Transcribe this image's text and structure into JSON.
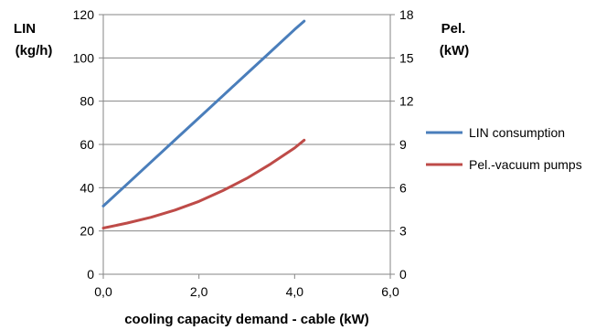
{
  "chart_data": {
    "type": "line",
    "xlabel": "cooling capacity demand - cable (kW)",
    "ylabel_left": [
      "LIN",
      "(kg/h)"
    ],
    "ylabel_right": [
      "Pel.",
      "(kW)"
    ],
    "x_ticks": [
      "0,0",
      "2,0",
      "4,0",
      "6,0"
    ],
    "y_left_ticks": [
      "0",
      "20",
      "40",
      "60",
      "80",
      "100",
      "120"
    ],
    "y_right_ticks": [
      "0",
      "3",
      "6",
      "9",
      "12",
      "15",
      "18"
    ],
    "xlim": [
      0,
      6
    ],
    "ylim_left": [
      0,
      120
    ],
    "ylim_right": [
      0,
      18
    ],
    "grid": "horizontal",
    "legend_position": "right",
    "series": [
      {
        "name": "LIN consumption",
        "axis": "left",
        "color": "#4a7ebb",
        "x": [
          0.0,
          0.5,
          1.0,
          1.5,
          2.0,
          2.5,
          3.0,
          3.5,
          4.0,
          4.2
        ],
        "y": [
          31.5,
          41.7,
          51.9,
          62.1,
          72.3,
          82.5,
          92.7,
          102.9,
          113.1,
          117.0
        ]
      },
      {
        "name": "Pel.-vacuum pumps",
        "axis": "right",
        "color": "#be4b48",
        "x": [
          0.0,
          0.5,
          1.0,
          1.5,
          2.0,
          2.5,
          3.0,
          3.5,
          4.0,
          4.2
        ],
        "y": [
          3.2,
          3.55,
          3.95,
          4.45,
          5.05,
          5.8,
          6.65,
          7.65,
          8.75,
          9.3
        ]
      }
    ]
  }
}
